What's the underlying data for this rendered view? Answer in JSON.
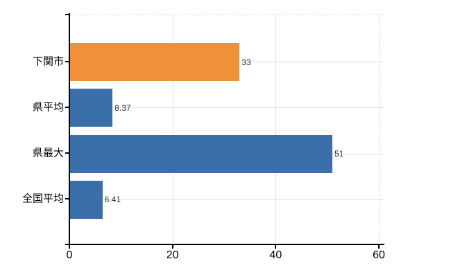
{
  "chart_data": {
    "type": "bar",
    "orientation": "horizontal",
    "title": "",
    "xlabel": "",
    "ylabel": "",
    "categories": [
      "下関市",
      "県平均",
      "県最大",
      "全国平均"
    ],
    "values": [
      33,
      8.37,
      51,
      6.41
    ],
    "value_labels": [
      "33",
      "8.37",
      "51",
      "6.41"
    ],
    "bar_colors": [
      "#EF9139",
      "#3A6FA9",
      "#3A6FA9",
      "#3A6FA9"
    ],
    "highlight_category": "下関市",
    "xticks": [
      0,
      20,
      40,
      60
    ],
    "xtick_labels": [
      "0",
      "20",
      "40",
      "60"
    ],
    "xlim": [
      0,
      61
    ],
    "grid": true,
    "legend": "none",
    "plot_border": "dashed top and right"
  },
  "colors": {
    "bar_highlight": "#EF9139",
    "bar_default": "#3A6FA9",
    "axis": "#000000",
    "gridline": "#DBE0D8",
    "dashed_border": "#D9D9D9",
    "value_text": "#303030",
    "label_text": "#000000",
    "background": "#FFFFFF"
  }
}
